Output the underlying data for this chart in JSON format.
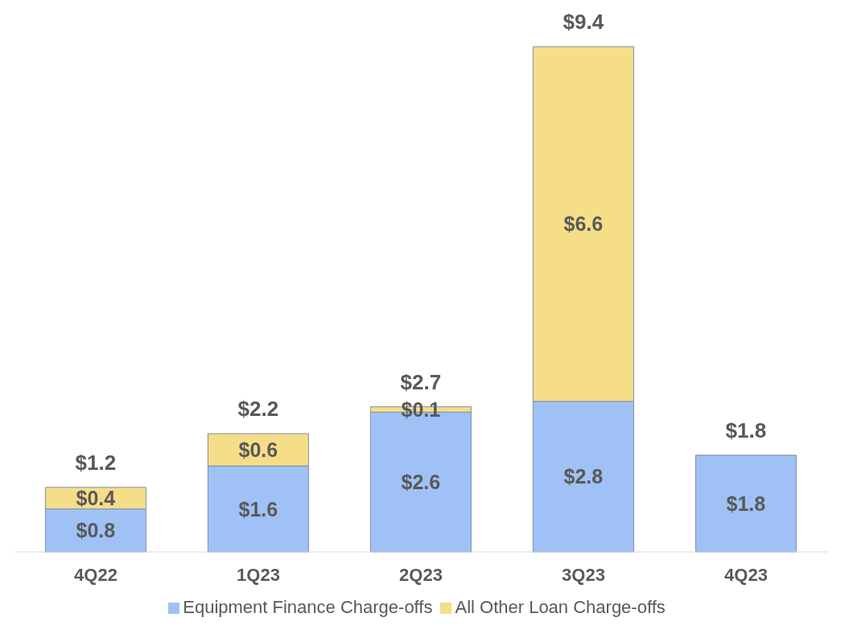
{
  "chart_data": {
    "type": "bar",
    "stacked": true,
    "categories": [
      "4Q22",
      "1Q23",
      "2Q23",
      "3Q23",
      "4Q23"
    ],
    "series": [
      {
        "name": "Equipment Finance Charge-offs",
        "color": "#a0c1f5",
        "values": [
          0.8,
          1.6,
          2.6,
          2.8,
          1.8
        ],
        "value_labels": [
          "$0.8",
          "$1.6",
          "$2.6",
          "$2.8",
          "$1.8"
        ]
      },
      {
        "name": "All Other Loan Charge-offs",
        "color": "#f6dd88",
        "values": [
          0.4,
          0.6,
          0.1,
          6.6,
          null
        ],
        "value_labels": [
          "$0.4",
          "$0.6",
          "$0.1",
          "$6.6",
          null
        ]
      }
    ],
    "totals": [
      "$1.2",
      "$2.2",
      "$2.7",
      "$9.4",
      "$1.8"
    ],
    "legend": "bottom"
  }
}
